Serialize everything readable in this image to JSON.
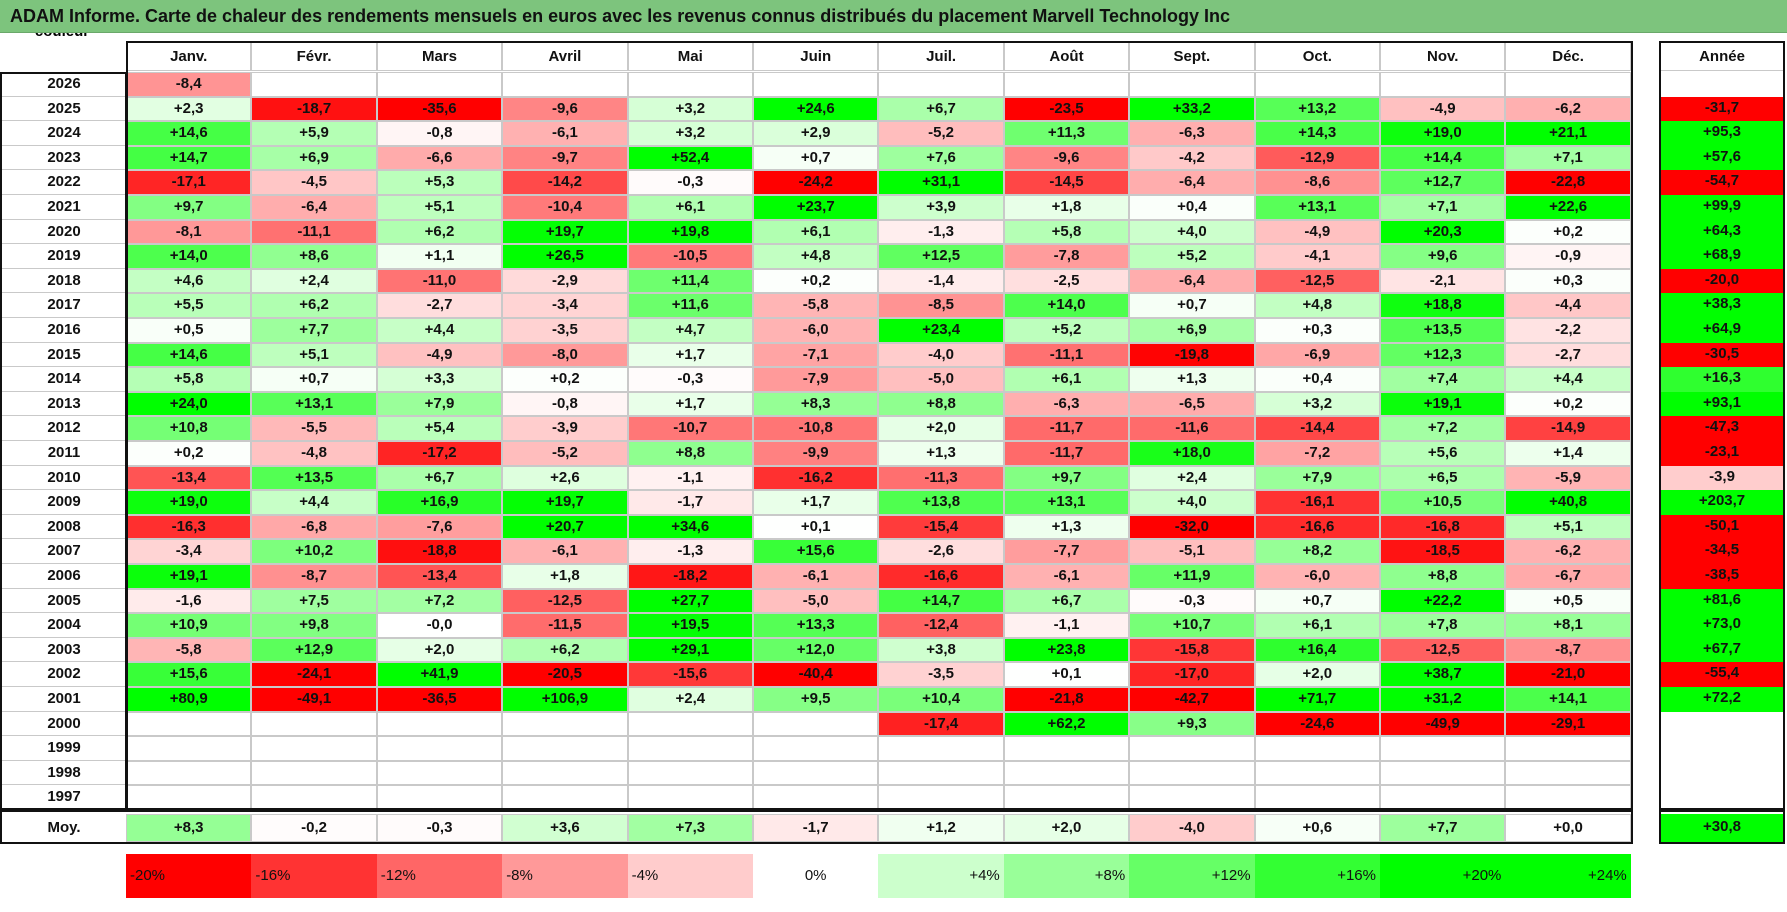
{
  "title": "ADAM Informe. Carte de chaleur des rendements mensuels en euros avec les revenus connus distribués du placement Marvell Technology Inc",
  "colors": {
    "title_bg": "#7dc47d",
    "positive_max": "#00ff00",
    "negative_max": "#ff0000",
    "neutral": "#ffffff"
  },
  "chart_data": {
    "type": "heatmap",
    "title": "ADAM Informe. Carte de chaleur des rendements mensuels en euros avec les revenus connus distribués du placement Marvell Technology Inc",
    "columns": [
      "Janv.",
      "Févr.",
      "Mars",
      "Avril",
      "Mai",
      "Juin",
      "Juil.",
      "Août",
      "Sept.",
      "Oct.",
      "Nov.",
      "Déc."
    ],
    "year_column_label": "Année",
    "rows": [
      {
        "year": "2026",
        "months": [
          "-8,4",
          "",
          "",
          "",
          "",
          "",
          "",
          "",
          "",
          "",
          "",
          ""
        ],
        "annual": ""
      },
      {
        "year": "2025",
        "months": [
          "+2,3",
          "-18,7",
          "-35,6",
          "-9,6",
          "+3,2",
          "+24,6",
          "+6,7",
          "-23,5",
          "+33,2",
          "+13,2",
          "-4,9",
          "-6,2"
        ],
        "annual": "-31,7"
      },
      {
        "year": "2024",
        "months": [
          "+14,6",
          "+5,9",
          "-0,8",
          "-6,1",
          "+3,2",
          "+2,9",
          "-5,2",
          "+11,3",
          "-6,3",
          "+14,3",
          "+19,0",
          "+21,1"
        ],
        "annual": "+95,3"
      },
      {
        "year": "2023",
        "months": [
          "+14,7",
          "+6,9",
          "-6,6",
          "-9,7",
          "+52,4",
          "+0,7",
          "+7,6",
          "-9,6",
          "-4,2",
          "-12,9",
          "+14,4",
          "+7,1"
        ],
        "annual": "+57,6"
      },
      {
        "year": "2022",
        "months": [
          "-17,1",
          "-4,5",
          "+5,3",
          "-14,2",
          "-0,3",
          "-24,2",
          "+31,1",
          "-14,5",
          "-6,4",
          "-8,6",
          "+12,7",
          "-22,8"
        ],
        "annual": "-54,7"
      },
      {
        "year": "2021",
        "months": [
          "+9,7",
          "-6,4",
          "+5,1",
          "-10,4",
          "+6,1",
          "+23,7",
          "+3,9",
          "+1,8",
          "+0,4",
          "+13,1",
          "+7,1",
          "+22,6"
        ],
        "annual": "+99,9"
      },
      {
        "year": "2020",
        "months": [
          "-8,1",
          "-11,1",
          "+6,2",
          "+19,7",
          "+19,8",
          "+6,1",
          "-1,3",
          "+5,8",
          "+4,0",
          "-4,9",
          "+20,3",
          "+0,2"
        ],
        "annual": "+64,3"
      },
      {
        "year": "2019",
        "months": [
          "+14,0",
          "+8,6",
          "+1,1",
          "+26,5",
          "-10,5",
          "+4,8",
          "+12,5",
          "-7,8",
          "+5,2",
          "-4,1",
          "+9,6",
          "-0,9"
        ],
        "annual": "+68,9"
      },
      {
        "year": "2018",
        "months": [
          "+4,6",
          "+2,4",
          "-11,0",
          "-2,9",
          "+11,4",
          "+0,2",
          "-1,4",
          "-2,5",
          "-6,4",
          "-12,5",
          "-2,1",
          "+0,3"
        ],
        "annual": "-20,0"
      },
      {
        "year": "2017",
        "months": [
          "+5,5",
          "+6,2",
          "-2,7",
          "-3,4",
          "+11,6",
          "-5,8",
          "-8,5",
          "+14,0",
          "+0,7",
          "+4,8",
          "+18,8",
          "-4,4"
        ],
        "annual": "+38,3"
      },
      {
        "year": "2016",
        "months": [
          "+0,5",
          "+7,7",
          "+4,4",
          "-3,5",
          "+4,7",
          "-6,0",
          "+23,4",
          "+5,2",
          "+6,9",
          "+0,3",
          "+13,5",
          "-2,2"
        ],
        "annual": "+64,9"
      },
      {
        "year": "2015",
        "months": [
          "+14,6",
          "+5,1",
          "-4,9",
          "-8,0",
          "+1,7",
          "-7,1",
          "-4,0",
          "-11,1",
          "-19,8",
          "-6,9",
          "+12,3",
          "-2,7"
        ],
        "annual": "-30,5"
      },
      {
        "year": "2014",
        "months": [
          "+5,8",
          "+0,7",
          "+3,3",
          "+0,2",
          "-0,3",
          "-7,9",
          "-5,0",
          "+6,1",
          "+1,3",
          "+0,4",
          "+7,4",
          "+4,4"
        ],
        "annual": "+16,3"
      },
      {
        "year": "2013",
        "months": [
          "+24,0",
          "+13,1",
          "+7,9",
          "-0,8",
          "+1,7",
          "+8,3",
          "+8,8",
          "-6,3",
          "-6,5",
          "+3,2",
          "+19,1",
          "+0,2"
        ],
        "annual": "+93,1"
      },
      {
        "year": "2012",
        "months": [
          "+10,8",
          "-5,5",
          "+5,4",
          "-3,9",
          "-10,7",
          "-10,8",
          "+2,0",
          "-11,7",
          "-11,6",
          "-14,4",
          "+7,2",
          "-14,9"
        ],
        "annual": "-47,3"
      },
      {
        "year": "2011",
        "months": [
          "+0,2",
          "-4,8",
          "-17,2",
          "-5,2",
          "+8,8",
          "-9,9",
          "+1,3",
          "-11,7",
          "+18,0",
          "-7,2",
          "+5,6",
          "+1,4"
        ],
        "annual": "-23,1"
      },
      {
        "year": "2010",
        "months": [
          "-13,4",
          "+13,5",
          "+6,7",
          "+2,6",
          "-1,1",
          "-16,2",
          "-11,3",
          "+9,7",
          "+2,4",
          "+7,9",
          "+6,5",
          "-5,9"
        ],
        "annual": "-3,9"
      },
      {
        "year": "2009",
        "months": [
          "+19,0",
          "+4,4",
          "+16,9",
          "+19,7",
          "-1,7",
          "+1,7",
          "+13,8",
          "+13,1",
          "+4,0",
          "-16,1",
          "+10,5",
          "+40,8"
        ],
        "annual": "+203,7"
      },
      {
        "year": "2008",
        "months": [
          "-16,3",
          "-6,8",
          "-7,6",
          "+20,7",
          "+34,6",
          "+0,1",
          "-15,4",
          "+1,3",
          "-32,0",
          "-16,6",
          "-16,8",
          "+5,1"
        ],
        "annual": "-50,1"
      },
      {
        "year": "2007",
        "months": [
          "-3,4",
          "+10,2",
          "-18,8",
          "-6,1",
          "-1,3",
          "+15,6",
          "-2,6",
          "-7,7",
          "-5,1",
          "+8,2",
          "-18,5",
          "-6,2"
        ],
        "annual": "-34,5"
      },
      {
        "year": "2006",
        "months": [
          "+19,1",
          "-8,7",
          "-13,4",
          "+1,8",
          "-18,2",
          "-6,1",
          "-16,6",
          "-6,1",
          "+11,9",
          "-6,0",
          "+8,8",
          "-6,7"
        ],
        "annual": "-38,5"
      },
      {
        "year": "2005",
        "months": [
          "-1,6",
          "+7,5",
          "+7,2",
          "-12,5",
          "+27,7",
          "-5,0",
          "+14,7",
          "+6,7",
          "-0,3",
          "+0,7",
          "+22,2",
          "+0,5"
        ],
        "annual": "+81,6"
      },
      {
        "year": "2004",
        "months": [
          "+10,9",
          "+9,8",
          "-0,0",
          "-11,5",
          "+19,5",
          "+13,3",
          "-12,4",
          "-1,1",
          "+10,7",
          "+6,1",
          "+7,8",
          "+8,1"
        ],
        "annual": "+73,0"
      },
      {
        "year": "2003",
        "months": [
          "-5,8",
          "+12,9",
          "+2,0",
          "+6,2",
          "+29,1",
          "+12,0",
          "+3,8",
          "+23,8",
          "-15,8",
          "+16,4",
          "-12,5",
          "-8,7"
        ],
        "annual": "+67,7"
      },
      {
        "year": "2002",
        "months": [
          "+15,6",
          "-24,1",
          "+41,9",
          "-20,5",
          "-15,6",
          "-40,4",
          "-3,5",
          "+0,1",
          "-17,0",
          "+2,0",
          "+38,7",
          "-21,0"
        ],
        "annual": "-55,4"
      },
      {
        "year": "2001",
        "months": [
          "+80,9",
          "-49,1",
          "-36,5",
          "+106,9",
          "+2,4",
          "+9,5",
          "+10,4",
          "-21,8",
          "-42,7",
          "+71,7",
          "+31,2",
          "+14,1"
        ],
        "annual": "+72,2"
      },
      {
        "year": "2000",
        "months": [
          "",
          "",
          "",
          "",
          "",
          "",
          "-17,4",
          "+62,2",
          "+9,3",
          "-24,6",
          "-49,9",
          "-29,1"
        ],
        "annual": ""
      },
      {
        "year": "1999",
        "months": [
          "",
          "",
          "",
          "",
          "",
          "",
          "",
          "",
          "",
          "",
          "",
          ""
        ],
        "annual": ""
      },
      {
        "year": "1998",
        "months": [
          "",
          "",
          "",
          "",
          "",
          "",
          "",
          "",
          "",
          "",
          "",
          ""
        ],
        "annual": ""
      },
      {
        "year": "1997",
        "months": [
          "",
          "",
          "",
          "",
          "",
          "",
          "",
          "",
          "",
          "",
          "",
          ""
        ],
        "annual": ""
      }
    ],
    "average": {
      "label": "Moy.",
      "months": [
        "+8,3",
        "-0,2",
        "-0,3",
        "+3,6",
        "+7,3",
        "-1,7",
        "+1,2",
        "+2,0",
        "-4,0",
        "+0,6",
        "+7,7",
        "+0,0"
      ],
      "annual": "+30,8"
    },
    "scale": {
      "label": "Echelle de couleur",
      "steps": [
        "-20%",
        "-16%",
        "-12%",
        "-8%",
        "-4%",
        "0%",
        "+4%",
        "+8%",
        "+12%",
        "+16%",
        "+20%",
        "+24%"
      ]
    }
  }
}
